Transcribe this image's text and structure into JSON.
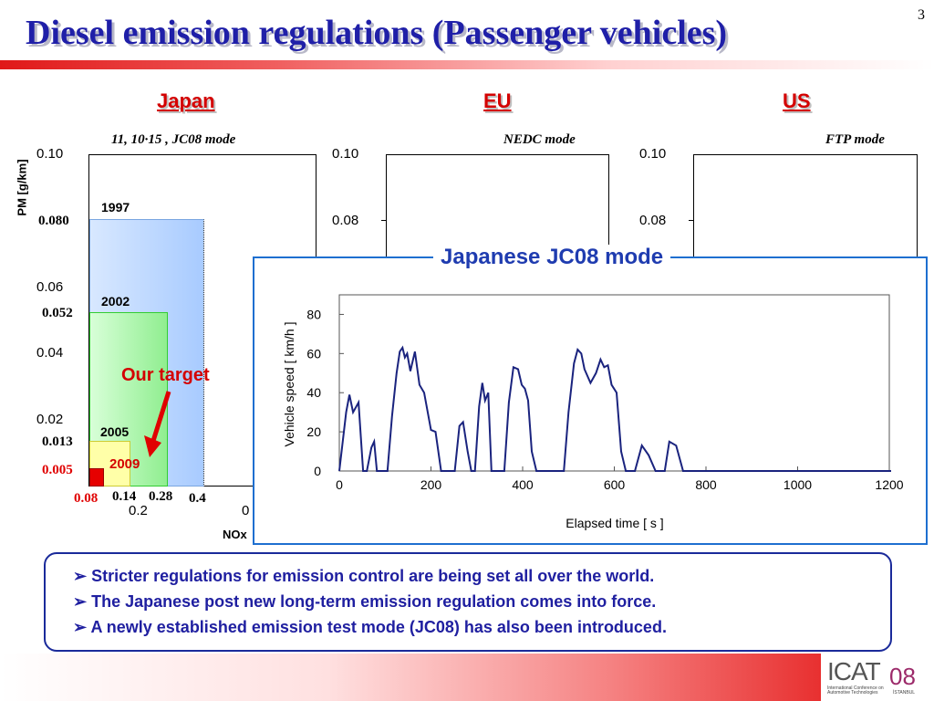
{
  "slide": {
    "title": "Diesel emission regulations (Passenger vehicles)",
    "page_number": "3"
  },
  "regions": {
    "japan": "Japan",
    "eu": "EU",
    "us": "US"
  },
  "modes": {
    "japan": "11, 10·15 , JC08 mode",
    "eu": "NEDC mode",
    "us": "FTP mode"
  },
  "japan_chart": {
    "ylabel": "PM [g/km]",
    "xlabel_visible": "NOx",
    "y_ticks": [
      "0.10",
      "0.06",
      "0.04",
      "0.02"
    ],
    "y_limits_bold": [
      "0.080",
      "0.052",
      "0.013"
    ],
    "y_limit_red": "0.005",
    "x_limits_bold": [
      "0.14",
      "0.28",
      "0.4"
    ],
    "x_limit_red": "0.08",
    "x_tick": "0.2",
    "x_tick_partial": "0",
    "years": [
      "1997",
      "2002",
      "2005",
      "2009"
    ],
    "regulation_boxes": [
      {
        "year": "1997",
        "nox": 0.4,
        "pm": 0.08
      },
      {
        "year": "2002",
        "nox": 0.28,
        "pm": 0.052
      },
      {
        "year": "2005",
        "nox": 0.14,
        "pm": 0.013
      },
      {
        "year": "2009",
        "nox": 0.08,
        "pm": 0.005
      }
    ],
    "our_target": "Our target"
  },
  "eu_chart": {
    "y_ticks": [
      "0.10",
      "0.08"
    ]
  },
  "us_chart": {
    "y_ticks": [
      "0.10",
      "0.08"
    ]
  },
  "jc08": {
    "title": "Japanese JC08 mode",
    "ylabel": "Vehicle speed [ km/h ]",
    "xlabel": "Elapsed time [ s ]",
    "y_ticks": [
      "80",
      "60",
      "40",
      "20",
      "0"
    ],
    "x_ticks": [
      "0",
      "200",
      "400",
      "600",
      "800",
      "1000",
      "1200"
    ]
  },
  "chart_data": {
    "type": "line",
    "title": "Japanese JC08 mode",
    "xlabel": "Elapsed time [ s ]",
    "ylabel": "Vehicle speed [ km/h ]",
    "xlim": [
      0,
      1200
    ],
    "ylim": [
      0,
      90
    ],
    "grid": false,
    "series": [
      {
        "x": [
          0,
          15,
          22,
          30,
          42,
          52,
          60,
          70,
          76,
          82,
          95,
          105,
          115,
          125,
          132,
          138,
          143,
          148,
          155,
          165,
          175,
          185,
          200,
          210,
          222,
          240,
          252,
          262,
          270,
          280,
          288,
          296,
          305,
          312,
          318,
          325,
          332,
          340,
          350,
          360,
          370,
          380,
          390,
          398,
          405,
          412,
          420,
          430,
          445,
          460,
          475,
          490,
          500,
          512,
          520,
          528,
          535,
          548,
          560,
          570,
          578,
          586,
          594,
          605,
          615,
          625,
          635,
          645,
          660,
          675,
          690,
          700,
          710,
          720,
          735,
          750,
          760,
          770,
          785,
          800,
          820,
          840,
          860,
          875,
          885,
          895,
          905,
          915,
          925,
          935,
          945,
          955,
          965,
          975,
          985,
          995,
          1005,
          1015,
          1025,
          1035,
          1045,
          1055,
          1065,
          1075,
          1085,
          1095,
          1105,
          1115,
          1125,
          1135,
          1145,
          1155,
          1165,
          1172,
          1178,
          1185,
          1190,
          1197,
          1204
        ],
        "y": [
          0,
          30,
          39,
          30,
          35,
          0,
          0,
          12,
          15,
          0,
          0,
          0,
          28,
          50,
          61,
          63,
          58,
          60,
          51,
          61,
          44,
          40,
          21,
          20,
          0,
          0,
          0,
          23,
          25,
          10,
          0,
          0,
          33,
          45,
          36,
          40,
          0,
          0,
          0,
          0,
          35,
          53,
          52,
          44,
          42,
          36,
          10,
          0,
          0,
          0,
          0,
          0,
          30,
          55,
          62,
          60,
          52,
          45,
          50,
          57,
          53,
          54,
          44,
          40,
          10,
          0,
          0,
          0,
          13,
          8,
          0,
          0,
          0,
          15,
          13,
          0,
          0,
          0,
          0,
          0,
          0,
          0,
          0,
          0,
          0,
          0,
          0,
          0,
          0,
          0,
          0,
          0,
          0,
          0,
          0,
          0,
          0,
          0,
          0,
          0,
          0,
          0,
          0,
          0,
          0,
          0,
          0,
          0,
          0,
          0,
          0,
          0,
          0,
          0,
          0,
          0,
          0,
          0,
          0
        ]
      }
    ]
  },
  "bullets": [
    "Stricter regulations for emission control are being set all over the world.",
    "The Japanese post new long-term emission regulation comes into force.",
    "A newly established emission test mode (JC08) has also been introduced."
  ],
  "bullet_marker": "➢",
  "colors": {
    "title": "#1f1fa8",
    "region": "#d40000",
    "inset_border": "#1e6fd0",
    "trace": "#1a237e"
  },
  "logo": {
    "text": "ICAT",
    "suffix": "08",
    "subtitle": "International Conference on Automotive Technologies",
    "city": "İSTANBUL"
  }
}
